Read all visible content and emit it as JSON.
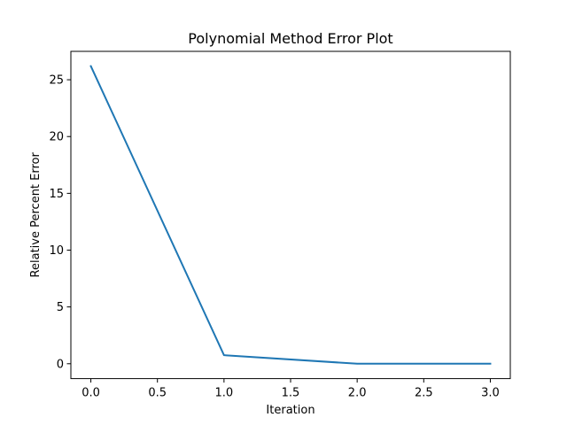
{
  "chart_data": {
    "type": "line",
    "title": "Polynomial Method Error Plot",
    "xlabel": "Iteration",
    "ylabel": "Relative Percent Error",
    "xlim": [
      -0.15,
      3.15
    ],
    "ylim": [
      -1.31,
      27.5
    ],
    "xticks": [
      0.0,
      0.5,
      1.0,
      1.5,
      2.0,
      2.5,
      3.0
    ],
    "xtick_labels": [
      "0.0",
      "0.5",
      "1.0",
      "1.5",
      "2.0",
      "2.5",
      "3.0"
    ],
    "yticks": [
      0,
      5,
      10,
      15,
      20,
      25
    ],
    "ytick_labels": [
      "0",
      "5",
      "10",
      "15",
      "20",
      "25"
    ],
    "grid": false,
    "series": [
      {
        "color": "#1f77b4",
        "x": [
          0,
          1,
          2,
          3
        ],
        "values": [
          26.2,
          0.75,
          0.0,
          0.0
        ]
      }
    ]
  }
}
